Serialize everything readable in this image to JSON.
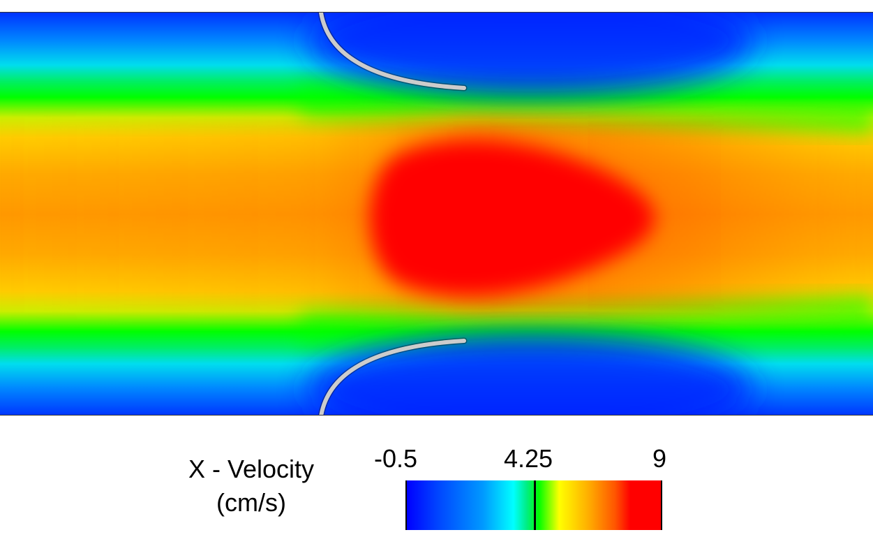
{
  "figure": {
    "variable": "X - Velocity",
    "units": "(cm/s)",
    "colorbar": {
      "min_label": "-0.5",
      "mid_label": "4.25",
      "max_label": "9",
      "min": -0.5,
      "mid": 4.25,
      "max": 9,
      "colormap": [
        "#0000ff",
        "#00ffff",
        "#00ff00",
        "#ffff00",
        "#ffa500",
        "#ff0000"
      ]
    },
    "leaflet_color": "#c8c8c8",
    "background": "#ffffff"
  }
}
